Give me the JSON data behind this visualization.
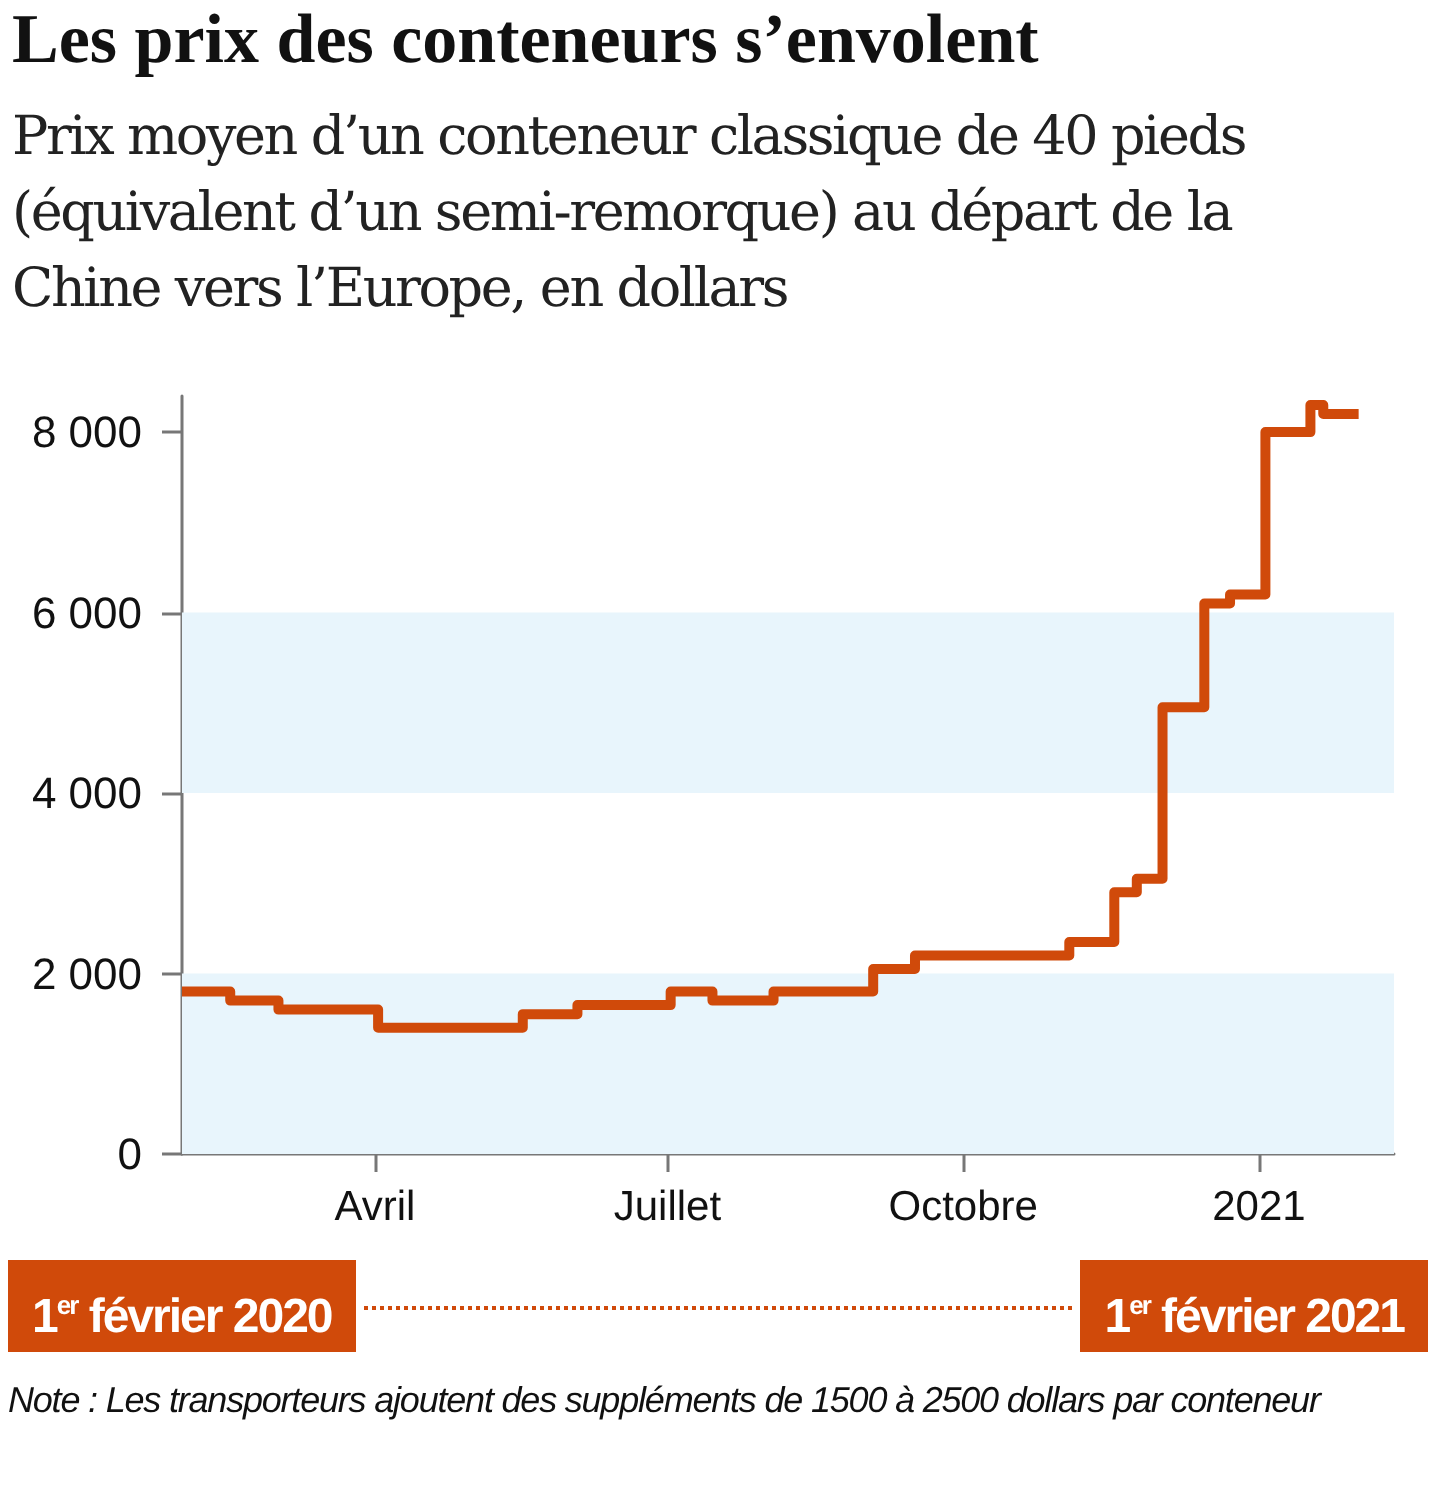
{
  "chart_data": {
    "type": "step",
    "title": "Les prix des conteneurs s’envolent",
    "subtitle": "Prix moyen d’un conteneur classique de 40 pieds (équivalent d’un semi-remorque) au départ de la Chine vers l’Europe, en dollars",
    "annotations": [
      "1$^{er}$ février 2020",
      "1$^{er}$ février 2021",
      "Note : Les transporteurs ajoutent des suppléments de 1500 à 2500 dollars par conteneur"
    ],
    "x": [
      "2020-02-01",
      "2020-02-16",
      "2020-03-02",
      "2020-04-02",
      "2020-05-17",
      "2020-06-03",
      "2020-07-02",
      "2020-07-15",
      "2020-08-03",
      "2020-09-03",
      "2020-09-16",
      "2020-11-03",
      "2020-11-17",
      "2020-11-24",
      "2020-12-02",
      "2020-12-15",
      "2020-12-23",
      "2021-01-03",
      "2021-01-17",
      "2021-01-21",
      "2021-02-01"
    ],
    "values": [
      1800,
      1700,
      1600,
      1400,
      1550,
      1650,
      1800,
      1700,
      1800,
      2050,
      2200,
      2350,
      2900,
      3050,
      4950,
      6100,
      6200,
      8000,
      8300,
      8200,
      8200
    ],
    "color": "#d04a0a",
    "marker": "none",
    "line_style": "solid",
    "xlim": [
      "2020-02-01",
      "2021-02-12"
    ],
    "xticks": [
      {
        "value": "2020-04-01",
        "label": "Avril"
      },
      {
        "value": "2020-07-01",
        "label": "Juillet"
      },
      {
        "value": "2020-10-01",
        "label": "Octobre"
      },
      {
        "value": "2021-01-01",
        "label": "2021"
      }
    ],
    "ylim": [
      0,
      8400
    ],
    "yticks": [
      0,
      {
        "value": 2000,
        "label": "2 000"
      },
      {
        "value": 4000,
        "label": "4 000"
      },
      {
        "value": 6000,
        "label": "6 000"
      },
      {
        "value": 8000,
        "label": "8 000"
      }
    ],
    "bands": [
      {
        "axis": "y",
        "from": 0,
        "to": 2000,
        "color": "#e8f5fc"
      },
      {
        "axis": "y",
        "from": 4000,
        "to": 6000,
        "color": "#e8f5fc"
      }
    ]
  }
}
